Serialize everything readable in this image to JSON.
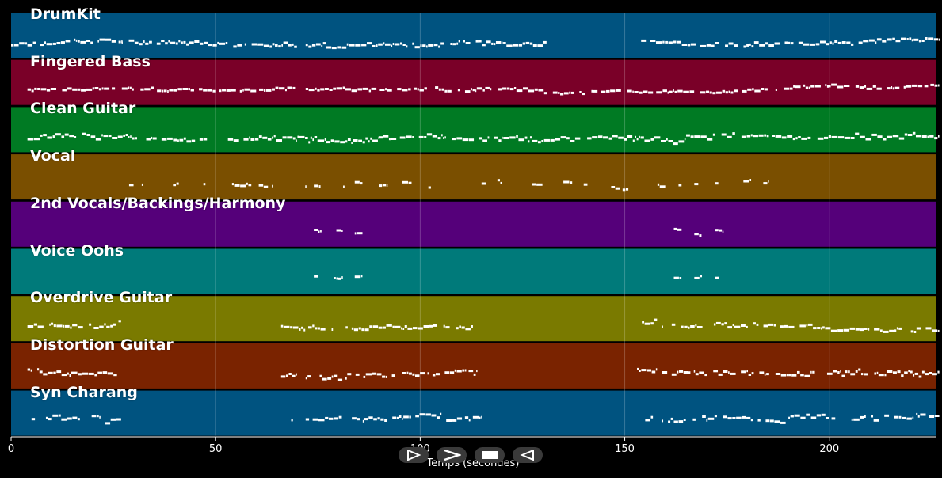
{
  "chart_data": {
    "type": "piano-roll",
    "xlabel": "Temps (secondes)",
    "xlim": [
      0,
      226
    ],
    "xticks": [
      0,
      50,
      100,
      150,
      200
    ],
    "grid": true,
    "tracks": [
      {
        "name": "DrumKit",
        "color": "#005380",
        "segments": [
          [
            0,
            27
          ],
          [
            27,
            70
          ],
          [
            72,
            105
          ],
          [
            105,
            131
          ],
          [
            154,
            227
          ]
        ],
        "density": 0.9,
        "pitch_variation": 0.5
      },
      {
        "name": "Fingered Bass",
        "color": "#7a0028",
        "segments": [
          [
            4,
            72
          ],
          [
            72,
            106
          ],
          [
            106,
            227
          ]
        ],
        "density": 0.85,
        "pitch_variation": 0.3
      },
      {
        "name": "Clean Guitar",
        "color": "#007a23",
        "segments": [
          [
            4,
            28
          ],
          [
            28,
            48
          ],
          [
            53,
            90
          ],
          [
            90,
            106
          ],
          [
            106,
            165
          ],
          [
            165,
            227
          ]
        ],
        "density": 0.9,
        "pitch_variation": 0.6
      },
      {
        "name": "Vocal",
        "color": "#7a4f00",
        "segments": [
          [
            28,
            33
          ],
          [
            38,
            43
          ],
          [
            47,
            50
          ],
          [
            54,
            58
          ],
          [
            58,
            64
          ],
          [
            70,
            72
          ],
          [
            74,
            76
          ],
          [
            79,
            82
          ],
          [
            84,
            86
          ],
          [
            90,
            92
          ],
          [
            95,
            98
          ],
          [
            102,
            103
          ],
          [
            115,
            120
          ],
          [
            125,
            130
          ],
          [
            135,
            141
          ],
          [
            146,
            151
          ],
          [
            158,
            160
          ],
          [
            162,
            164
          ],
          [
            167,
            170
          ],
          [
            172,
            175
          ],
          [
            179,
            181
          ],
          [
            183,
            185
          ]
        ],
        "density": 0.6,
        "pitch_variation": 0.4
      },
      {
        "name": "2nd Vocals/Backings/Harmony",
        "color": "#55007a",
        "segments": [
          [
            74,
            76
          ],
          [
            79,
            81
          ],
          [
            84,
            86
          ],
          [
            162,
            164
          ],
          [
            167,
            169
          ],
          [
            172,
            174
          ]
        ],
        "density": 0.7,
        "pitch_variation": 0.3
      },
      {
        "name": "Voice Oohs",
        "color": "#007a7a",
        "segments": [
          [
            74,
            76
          ],
          [
            79,
            81
          ],
          [
            84,
            86
          ],
          [
            162,
            164
          ],
          [
            167,
            169
          ],
          [
            172,
            174
          ]
        ],
        "density": 0.7,
        "pitch_variation": 0.3
      },
      {
        "name": "Overdrive Guitar",
        "color": "#7a7a00",
        "segments": [
          [
            4,
            27
          ],
          [
            66,
            72
          ],
          [
            72,
            113
          ],
          [
            153,
            158
          ],
          [
            159,
            196
          ],
          [
            196,
            227
          ]
        ],
        "density": 0.85,
        "pitch_variation": 0.5
      },
      {
        "name": "Distortion Guitar",
        "color": "#7a2300",
        "segments": [
          [
            4,
            26
          ],
          [
            66,
            70
          ],
          [
            72,
            105
          ],
          [
            106,
            114
          ],
          [
            153,
            158
          ],
          [
            159,
            190
          ],
          [
            190,
            227
          ]
        ],
        "density": 0.85,
        "pitch_variation": 0.6
      },
      {
        "name": "Syn Charang",
        "color": "#005380",
        "segments": [
          [
            5,
            23
          ],
          [
            23,
            27
          ],
          [
            68,
            69
          ],
          [
            72,
            105
          ],
          [
            105,
            115
          ],
          [
            155,
            157
          ],
          [
            159,
            190
          ],
          [
            190,
            227
          ]
        ],
        "density": 0.8,
        "pitch_variation": 0.6
      }
    ]
  },
  "controls": {
    "play_icon": "play-outline-icon",
    "forward_icon": "chevron-right-icon",
    "stop_icon": "stop-icon",
    "back_icon": "back-triangle-icon"
  }
}
